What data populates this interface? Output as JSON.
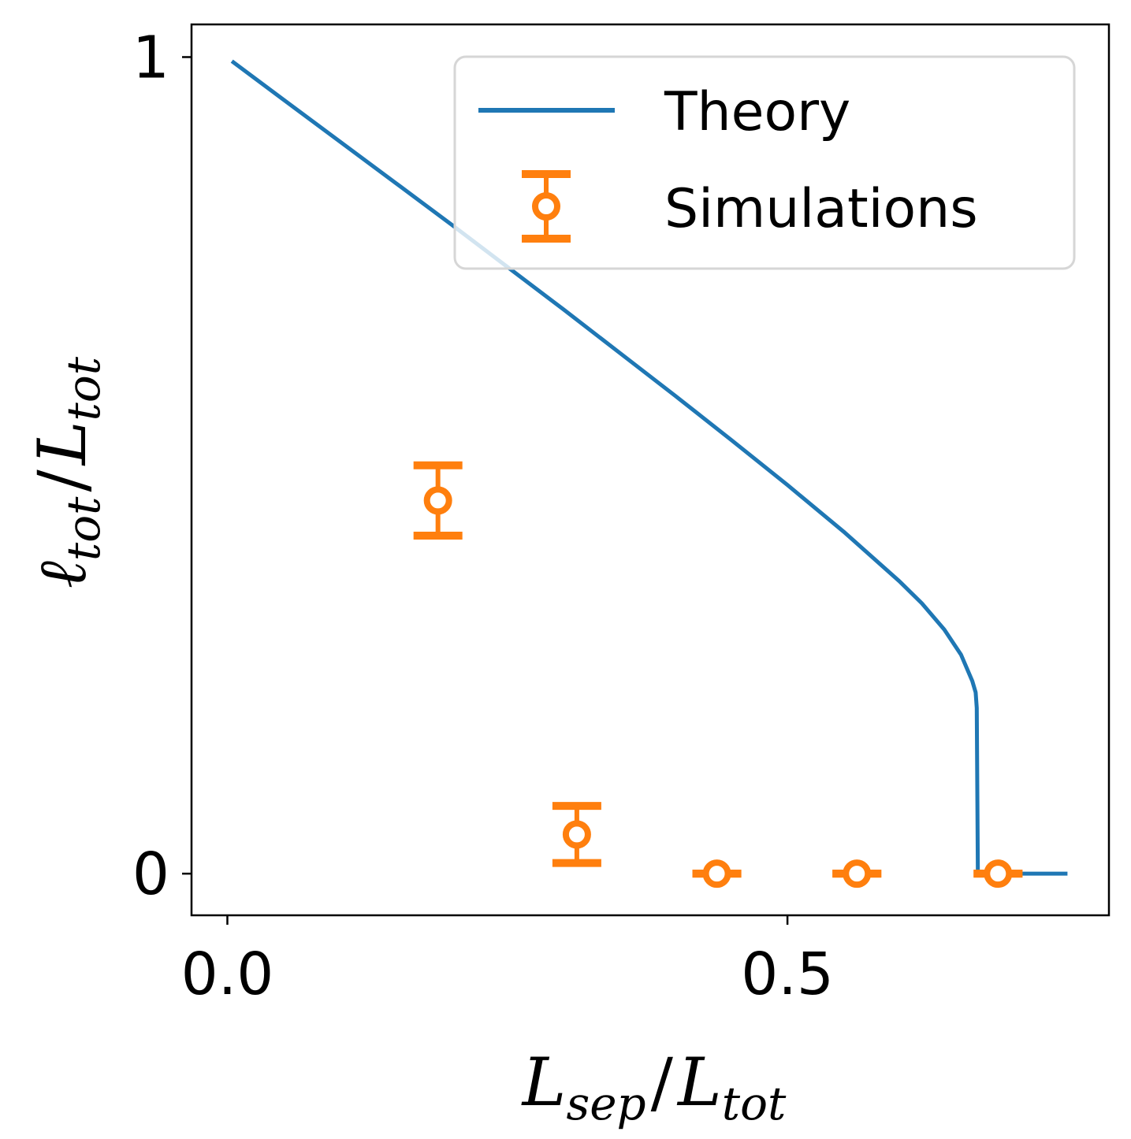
{
  "chart_data": {
    "type": "line",
    "xlabel": {
      "main": "L",
      "sub": "sep",
      "sep": "/",
      "main2": "L",
      "sub2": "tot"
    },
    "ylabel": {
      "main": "ℓ",
      "sub": "tot",
      "sep": "/",
      "main2": "L",
      "sub2": "tot"
    },
    "xlim": [
      -0.032,
      0.787
    ],
    "ylim": [
      -0.051,
      1.04
    ],
    "xticks": [
      {
        "value": 0.0,
        "label": "0.0"
      },
      {
        "value": 0.5,
        "label": "0.5"
      }
    ],
    "yticks": [
      {
        "value": 0,
        "label": "0"
      },
      {
        "value": 1,
        "label": "1"
      }
    ],
    "grid": false,
    "legend_position": "top-right",
    "series": [
      {
        "name": "Theory",
        "kind": "line",
        "color": "#1f77b4",
        "x": [
          0.004,
          0.05,
          0.1,
          0.15,
          0.2,
          0.25,
          0.3,
          0.35,
          0.4,
          0.45,
          0.5,
          0.55,
          0.6,
          0.62,
          0.64,
          0.655,
          0.665,
          0.668,
          0.669,
          0.67,
          0.7,
          0.75
        ],
        "y": [
          0.995,
          0.948,
          0.897,
          0.846,
          0.795,
          0.743,
          0.691,
          0.638,
          0.585,
          0.531,
          0.476,
          0.419,
          0.358,
          0.331,
          0.299,
          0.268,
          0.236,
          0.222,
          0.203,
          0.0,
          0.0,
          0.0
        ]
      },
      {
        "name": "Simulations",
        "kind": "errorbar",
        "color": "#ff7f0e",
        "points": [
          {
            "x": 0.188,
            "y": 0.457,
            "err": 0.043
          },
          {
            "x": 0.312,
            "y": 0.048,
            "err": 0.035
          },
          {
            "x": 0.437,
            "y": 0.0,
            "err": 0.0
          },
          {
            "x": 0.562,
            "y": 0.0,
            "err": 0.0
          },
          {
            "x": 0.688,
            "y": 0.0,
            "err": 0.0
          }
        ]
      }
    ]
  }
}
